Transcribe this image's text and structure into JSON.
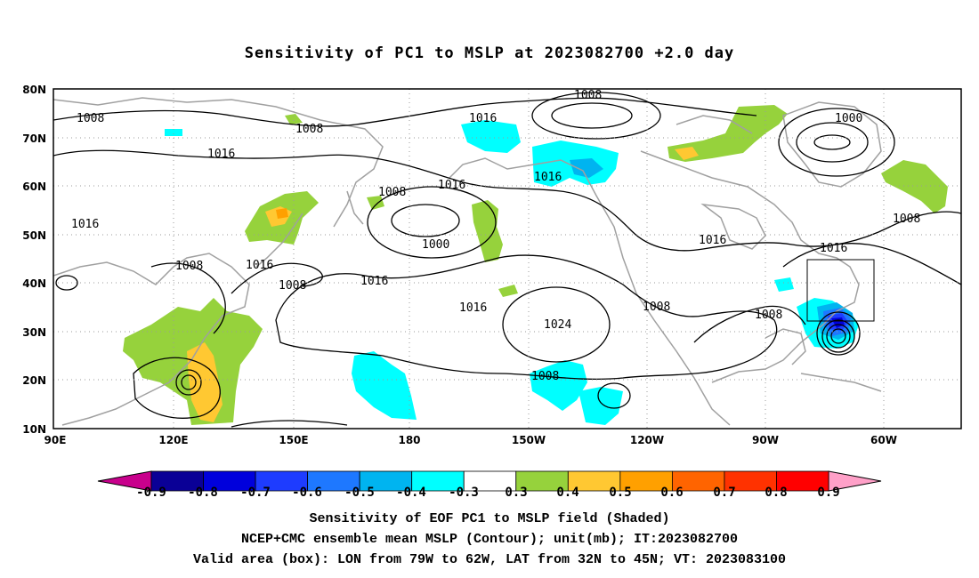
{
  "title": "Sensitivity of PC1 to MSLP at 2023082700 +2.0 day",
  "map": {
    "lat_labels": [
      "80N",
      "70N",
      "60N",
      "50N",
      "40N",
      "30N",
      "20N",
      "10N"
    ],
    "lon_labels": [
      "90E",
      "120E",
      "150E",
      "180",
      "150W",
      "120W",
      "90W",
      "60W"
    ],
    "contour_labels": [
      "1008",
      "1008",
      "1008",
      "1000",
      "1016",
      "1016",
      "1016",
      "1016",
      "1008",
      "1008",
      "1016",
      "1000",
      "1016",
      "1008",
      "1016",
      "1008",
      "1016",
      "1016",
      "1024",
      "1008",
      "1008",
      "1016",
      "1008"
    ],
    "valid_box": {
      "lon_range": [
        "79W",
        "62W"
      ],
      "lat_range": [
        "32N",
        "45N"
      ]
    }
  },
  "colorbar": {
    "labels": [
      "-0.9",
      "-0.8",
      "-0.7",
      "-0.6",
      "-0.5",
      "-0.4",
      "-0.3",
      "0.3",
      "0.4",
      "0.5",
      "0.6",
      "0.7",
      "0.8",
      "0.9"
    ],
    "colors": [
      "#0a0096",
      "#0000dc",
      "#1e3cff",
      "#1e78ff",
      "#00b4f0",
      "#00ffff",
      "#ffffff",
      "#96d23c",
      "#ffc832",
      "#ffa000",
      "#ff6400",
      "#ff3200",
      "#ff0000"
    ],
    "low_arrow_color": "#c8008c",
    "high_arrow_color": "#ffa0c8"
  },
  "captions": {
    "line1": "Sensitivity of EOF PC1 to MSLP field (Shaded)",
    "line2": "NCEP+CMC ensemble mean MSLP (Contour); unit(mb); IT:2023082700",
    "line3": "Valid area (box): LON from 79W to 62W, LAT from 32N to 45N; VT: 2023083100"
  }
}
